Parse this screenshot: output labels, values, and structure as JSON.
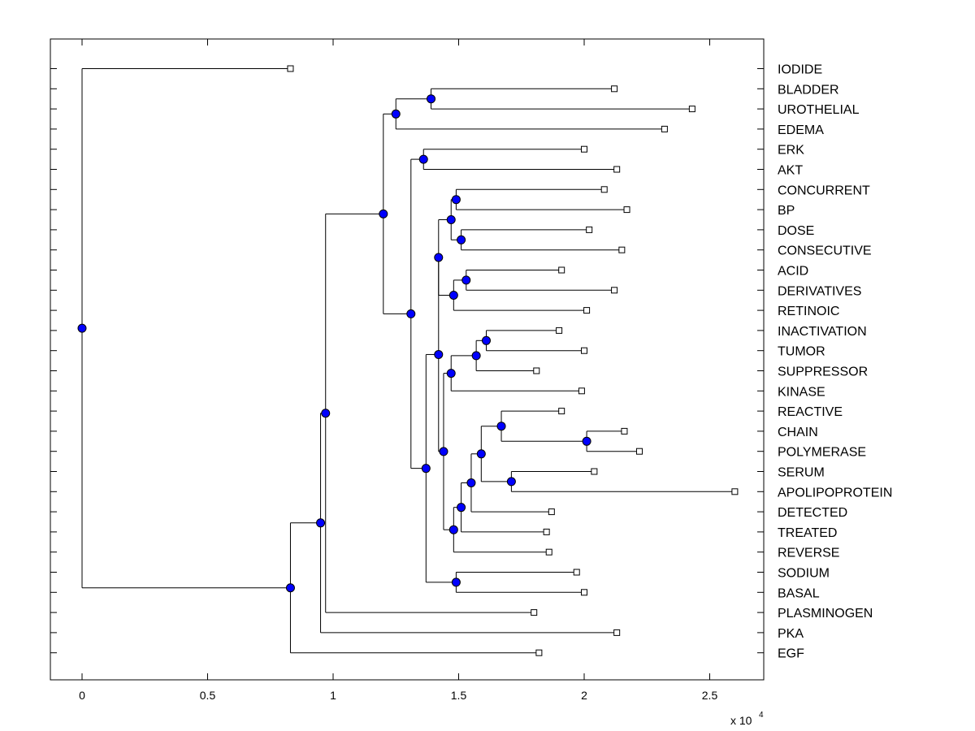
{
  "chart_data": {
    "type": "dendrogram",
    "orientation": "horizontal",
    "title": "",
    "xlabel": "",
    "ylabel": "",
    "x_multiplier_label": "x 10",
    "x_multiplier_exponent": "4",
    "x_scale": 10000,
    "xlim": [
      -0.125,
      2.725
    ],
    "xticks": [
      0,
      0.5,
      1,
      1.5,
      2,
      2.5
    ],
    "xtick_labels": [
      "0",
      "0.5",
      "1",
      "1.5",
      "2",
      "2.5"
    ],
    "leaves": [
      {
        "label": "IODIDE",
        "x": 0.83
      },
      {
        "label": "BLADDER",
        "x": 2.12
      },
      {
        "label": "UROTHELIAL",
        "x": 2.43
      },
      {
        "label": "EDEMA",
        "x": 2.32
      },
      {
        "label": "ERK",
        "x": 2.0
      },
      {
        "label": "AKT",
        "x": 2.13
      },
      {
        "label": "CONCURRENT",
        "x": 2.08
      },
      {
        "label": "BP",
        "x": 2.17
      },
      {
        "label": "DOSE",
        "x": 2.02
      },
      {
        "label": "CONSECUTIVE",
        "x": 2.15
      },
      {
        "label": "ACID",
        "x": 1.91
      },
      {
        "label": "DERIVATIVES",
        "x": 2.12
      },
      {
        "label": "RETINOIC",
        "x": 2.01
      },
      {
        "label": "INACTIVATION",
        "x": 1.9
      },
      {
        "label": "TUMOR",
        "x": 2.0
      },
      {
        "label": "SUPPRESSOR",
        "x": 1.81
      },
      {
        "label": "KINASE",
        "x": 1.99
      },
      {
        "label": "REACTIVE",
        "x": 1.91
      },
      {
        "label": "CHAIN",
        "x": 2.16
      },
      {
        "label": "POLYMERASE",
        "x": 2.22
      },
      {
        "label": "SERUM",
        "x": 2.04
      },
      {
        "label": "APOLIPOPROTEIN",
        "x": 2.6
      },
      {
        "label": "DETECTED",
        "x": 1.87
      },
      {
        "label": "TREATED",
        "x": 1.85
      },
      {
        "label": "REVERSE",
        "x": 1.86
      },
      {
        "label": "SODIUM",
        "x": 1.97
      },
      {
        "label": "BASAL",
        "x": 2.0
      },
      {
        "label": "PLASMINOGEN",
        "x": 1.8
      },
      {
        "label": "PKA",
        "x": 2.13
      },
      {
        "label": "EGF",
        "x": 1.82
      }
    ],
    "nodes": [
      {
        "id": "n_bu",
        "x": 1.39,
        "children": [
          "BLADDER",
          "UROTHELIAL"
        ]
      },
      {
        "id": "n_bue",
        "x": 1.25,
        "children": [
          "n_bu",
          "EDEMA"
        ]
      },
      {
        "id": "n_erk_akt",
        "x": 1.36,
        "children": [
          "ERK",
          "AKT"
        ]
      },
      {
        "id": "n_cbp",
        "x": 1.49,
        "children": [
          "CONCURRENT",
          "BP"
        ]
      },
      {
        "id": "n_dc",
        "x": 1.51,
        "children": [
          "DOSE",
          "CONSECUTIVE"
        ]
      },
      {
        "id": "n_cbpdc",
        "x": 1.47,
        "children": [
          "n_cbp",
          "n_dc"
        ]
      },
      {
        "id": "n_ad",
        "x": 1.53,
        "children": [
          "ACID",
          "DERIVATIVES"
        ]
      },
      {
        "id": "n_adr",
        "x": 1.48,
        "children": [
          "n_ad",
          "RETINOIC"
        ]
      },
      {
        "id": "n_mid1",
        "x": 1.42,
        "children": [
          "n_cbpdc",
          "n_adr"
        ]
      },
      {
        "id": "n_it",
        "x": 1.61,
        "children": [
          "INACTIVATION",
          "TUMOR"
        ]
      },
      {
        "id": "n_its",
        "x": 1.57,
        "children": [
          "n_it",
          "SUPPRESSOR"
        ]
      },
      {
        "id": "n_itsk",
        "x": 1.47,
        "children": [
          "n_its",
          "KINASE"
        ]
      },
      {
        "id": "n_cp",
        "x": 2.01,
        "children": [
          "CHAIN",
          "POLYMERASE"
        ]
      },
      {
        "id": "n_rcp",
        "x": 1.67,
        "children": [
          "REACTIVE",
          "n_cp"
        ]
      },
      {
        "id": "n_sa",
        "x": 1.71,
        "children": [
          "SERUM",
          "APOLIPOPROTEIN"
        ]
      },
      {
        "id": "n_rcpsa",
        "x": 1.59,
        "children": [
          "n_rcp",
          "n_sa"
        ]
      },
      {
        "id": "n_plus_det",
        "x": 1.55,
        "children": [
          "n_rcpsa",
          "DETECTED"
        ]
      },
      {
        "id": "n_plus_tr",
        "x": 1.51,
        "children": [
          "n_plus_det",
          "TREATED"
        ]
      },
      {
        "id": "n_plus_rev",
        "x": 1.48,
        "children": [
          "n_plus_tr",
          "REVERSE"
        ]
      },
      {
        "id": "n_mid2",
        "x": 1.44,
        "children": [
          "n_itsk",
          "n_plus_rev"
        ]
      },
      {
        "id": "n_mid",
        "x": 1.42,
        "children": [
          "n_mid1",
          "n_mid2"
        ]
      },
      {
        "id": "n_sb",
        "x": 1.49,
        "children": [
          "SODIUM",
          "BASAL"
        ]
      },
      {
        "id": "n_midsb",
        "x": 1.37,
        "children": [
          "n_mid",
          "n_sb"
        ]
      },
      {
        "id": "n_big",
        "x": 1.31,
        "children": [
          "n_erk_akt",
          "n_midsb"
        ]
      },
      {
        "id": "n_top",
        "x": 1.2,
        "children": [
          "n_bue",
          "n_big"
        ]
      },
      {
        "id": "n_topp",
        "x": 0.97,
        "children": [
          "n_top",
          "PLASMINOGEN"
        ]
      },
      {
        "id": "n_toppk",
        "x": 0.95,
        "children": [
          "n_topp",
          "PKA"
        ]
      },
      {
        "id": "n_egf",
        "x": 0.83,
        "children": [
          "n_toppk",
          "EGF"
        ]
      },
      {
        "id": "n_root",
        "x": 0.0,
        "children": [
          "IODIDE",
          "n_egf"
        ]
      }
    ],
    "colors": {
      "node_fill": "#0000ff",
      "line": "#000000",
      "leaf_marker_fill": "#ffffff",
      "axis": "#000000"
    }
  }
}
